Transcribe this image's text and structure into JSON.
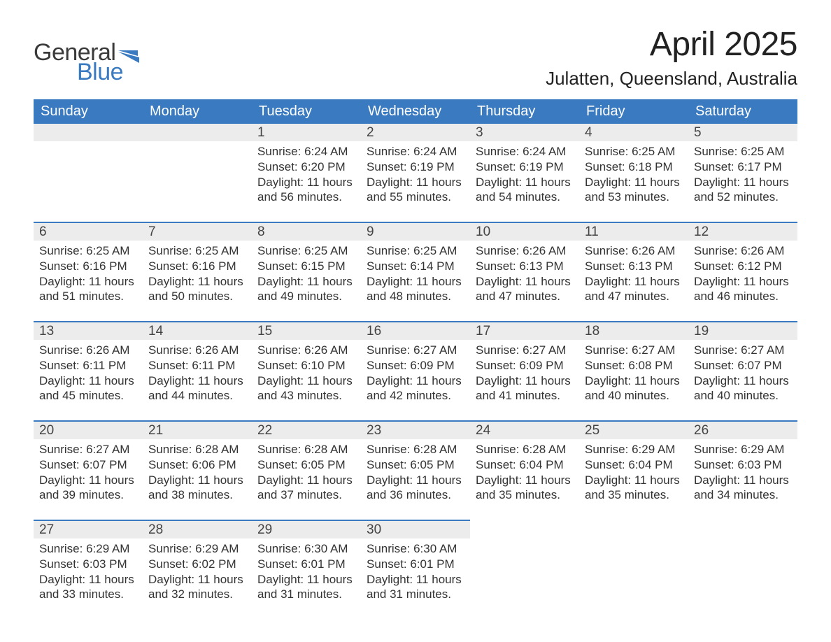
{
  "logo": {
    "word1": "General",
    "word2": "Blue"
  },
  "title": "April 2025",
  "location": "Julatten, Queensland, Australia",
  "colors": {
    "accent": "#3a7ac0",
    "header_bg": "#3a7ac0",
    "header_text": "#ffffff",
    "daynum_bg": "#ececec",
    "rule": "#3a7ac0",
    "text": "#333333",
    "page_bg": "#ffffff"
  },
  "columns": [
    "Sunday",
    "Monday",
    "Tuesday",
    "Wednesday",
    "Thursday",
    "Friday",
    "Saturday"
  ],
  "weeks": [
    {
      "days": [
        null,
        null,
        {
          "n": "1",
          "sunrise": "6:24 AM",
          "sunset": "6:20 PM",
          "daylight": "11 hours and 56 minutes."
        },
        {
          "n": "2",
          "sunrise": "6:24 AM",
          "sunset": "6:19 PM",
          "daylight": "11 hours and 55 minutes."
        },
        {
          "n": "3",
          "sunrise": "6:24 AM",
          "sunset": "6:19 PM",
          "daylight": "11 hours and 54 minutes."
        },
        {
          "n": "4",
          "sunrise": "6:25 AM",
          "sunset": "6:18 PM",
          "daylight": "11 hours and 53 minutes."
        },
        {
          "n": "5",
          "sunrise": "6:25 AM",
          "sunset": "6:17 PM",
          "daylight": "11 hours and 52 minutes."
        }
      ]
    },
    {
      "days": [
        {
          "n": "6",
          "sunrise": "6:25 AM",
          "sunset": "6:16 PM",
          "daylight": "11 hours and 51 minutes."
        },
        {
          "n": "7",
          "sunrise": "6:25 AM",
          "sunset": "6:16 PM",
          "daylight": "11 hours and 50 minutes."
        },
        {
          "n": "8",
          "sunrise": "6:25 AM",
          "sunset": "6:15 PM",
          "daylight": "11 hours and 49 minutes."
        },
        {
          "n": "9",
          "sunrise": "6:25 AM",
          "sunset": "6:14 PM",
          "daylight": "11 hours and 48 minutes."
        },
        {
          "n": "10",
          "sunrise": "6:26 AM",
          "sunset": "6:13 PM",
          "daylight": "11 hours and 47 minutes."
        },
        {
          "n": "11",
          "sunrise": "6:26 AM",
          "sunset": "6:13 PM",
          "daylight": "11 hours and 47 minutes."
        },
        {
          "n": "12",
          "sunrise": "6:26 AM",
          "sunset": "6:12 PM",
          "daylight": "11 hours and 46 minutes."
        }
      ]
    },
    {
      "days": [
        {
          "n": "13",
          "sunrise": "6:26 AM",
          "sunset": "6:11 PM",
          "daylight": "11 hours and 45 minutes."
        },
        {
          "n": "14",
          "sunrise": "6:26 AM",
          "sunset": "6:11 PM",
          "daylight": "11 hours and 44 minutes."
        },
        {
          "n": "15",
          "sunrise": "6:26 AM",
          "sunset": "6:10 PM",
          "daylight": "11 hours and 43 minutes."
        },
        {
          "n": "16",
          "sunrise": "6:27 AM",
          "sunset": "6:09 PM",
          "daylight": "11 hours and 42 minutes."
        },
        {
          "n": "17",
          "sunrise": "6:27 AM",
          "sunset": "6:09 PM",
          "daylight": "11 hours and 41 minutes."
        },
        {
          "n": "18",
          "sunrise": "6:27 AM",
          "sunset": "6:08 PM",
          "daylight": "11 hours and 40 minutes."
        },
        {
          "n": "19",
          "sunrise": "6:27 AM",
          "sunset": "6:07 PM",
          "daylight": "11 hours and 40 minutes."
        }
      ]
    },
    {
      "days": [
        {
          "n": "20",
          "sunrise": "6:27 AM",
          "sunset": "6:07 PM",
          "daylight": "11 hours and 39 minutes."
        },
        {
          "n": "21",
          "sunrise": "6:28 AM",
          "sunset": "6:06 PM",
          "daylight": "11 hours and 38 minutes."
        },
        {
          "n": "22",
          "sunrise": "6:28 AM",
          "sunset": "6:05 PM",
          "daylight": "11 hours and 37 minutes."
        },
        {
          "n": "23",
          "sunrise": "6:28 AM",
          "sunset": "6:05 PM",
          "daylight": "11 hours and 36 minutes."
        },
        {
          "n": "24",
          "sunrise": "6:28 AM",
          "sunset": "6:04 PM",
          "daylight": "11 hours and 35 minutes."
        },
        {
          "n": "25",
          "sunrise": "6:29 AM",
          "sunset": "6:04 PM",
          "daylight": "11 hours and 35 minutes."
        },
        {
          "n": "26",
          "sunrise": "6:29 AM",
          "sunset": "6:03 PM",
          "daylight": "11 hours and 34 minutes."
        }
      ]
    },
    {
      "days": [
        {
          "n": "27",
          "sunrise": "6:29 AM",
          "sunset": "6:03 PM",
          "daylight": "11 hours and 33 minutes."
        },
        {
          "n": "28",
          "sunrise": "6:29 AM",
          "sunset": "6:02 PM",
          "daylight": "11 hours and 32 minutes."
        },
        {
          "n": "29",
          "sunrise": "6:30 AM",
          "sunset": "6:01 PM",
          "daylight": "11 hours and 31 minutes."
        },
        {
          "n": "30",
          "sunrise": "6:30 AM",
          "sunset": "6:01 PM",
          "daylight": "11 hours and 31 minutes."
        },
        null,
        null,
        null
      ]
    }
  ],
  "labels": {
    "sunrise_prefix": "Sunrise: ",
    "sunset_prefix": "Sunset: ",
    "daylight_prefix": "Daylight: "
  }
}
